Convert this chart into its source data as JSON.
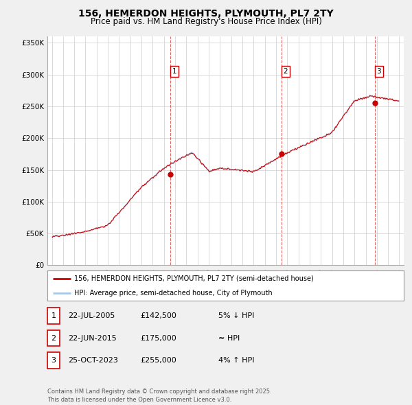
{
  "title": "156, HEMERDON HEIGHTS, PLYMOUTH, PL7 2TY",
  "subtitle": "Price paid vs. HM Land Registry's House Price Index (HPI)",
  "legend_line1": "156, HEMERDON HEIGHTS, PLYMOUTH, PL7 2TY (semi-detached house)",
  "legend_line2": "HPI: Average price, semi-detached house, City of Plymouth",
  "table_rows": [
    {
      "num": "1",
      "date": "22-JUL-2005",
      "price": "£142,500",
      "rel": "5% ↓ HPI"
    },
    {
      "num": "2",
      "date": "22-JUN-2015",
      "price": "£175,000",
      "rel": "≈ HPI"
    },
    {
      "num": "3",
      "date": "25-OCT-2023",
      "price": "£255,000",
      "rel": "4% ↑ HPI"
    }
  ],
  "footer": "Contains HM Land Registry data © Crown copyright and database right 2025.\nThis data is licensed under the Open Government Licence v3.0.",
  "sale_prices": [
    142500,
    175000,
    255000
  ],
  "ylim": [
    0,
    360000
  ],
  "yticks": [
    0,
    50000,
    100000,
    150000,
    200000,
    250000,
    300000,
    350000
  ],
  "background_color": "#f0f0f0",
  "plot_bg_color": "#ffffff",
  "grid_color": "#cccccc",
  "hpi_line_color": "#a8c8e8",
  "price_line_color": "#cc0000",
  "vline_color": "#cc0000",
  "sale_marker_color": "#cc0000",
  "note_box_color": "#cc0000"
}
